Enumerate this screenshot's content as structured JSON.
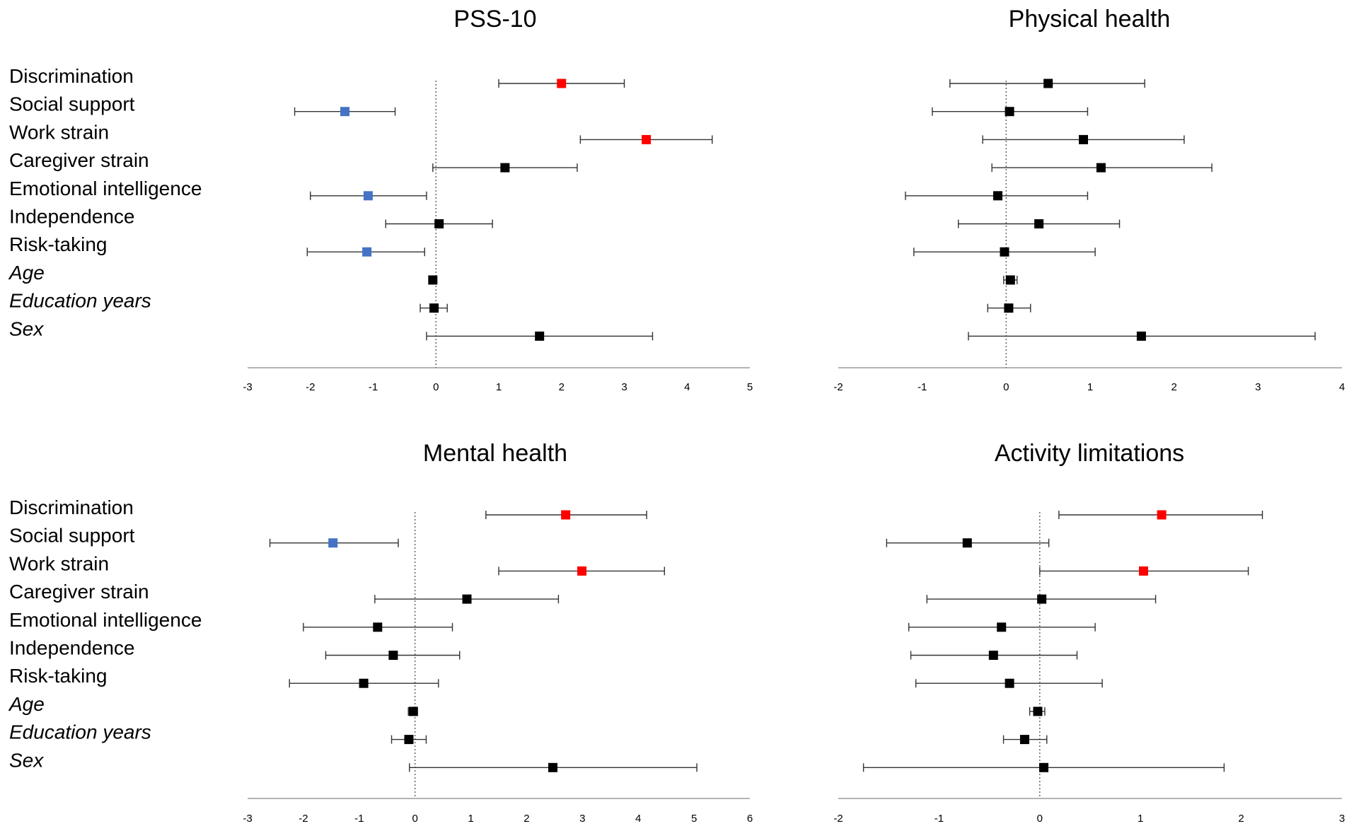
{
  "chart_data": [
    {
      "type": "forest",
      "title": "PSS-10",
      "xlim": [
        -3,
        5
      ],
      "ticks": [
        "-3",
        "-2",
        "-1",
        "0",
        "1",
        "2",
        "3",
        "4",
        "5"
      ],
      "categories": [
        "Discrimination",
        "Social support",
        "Work strain",
        "Caregiver strain",
        "Emotional intelligence",
        "Independence",
        "Risk-taking",
        "Age",
        "Education years",
        "Sex"
      ],
      "points": [
        {
          "estimate": 2.0,
          "lower": 1.0,
          "upper": 3.0,
          "color": "#ff0000"
        },
        {
          "estimate": -1.45,
          "lower": -2.25,
          "upper": -0.65,
          "color": "#4472c4"
        },
        {
          "estimate": 3.35,
          "lower": 2.3,
          "upper": 4.4,
          "color": "#ff0000"
        },
        {
          "estimate": 1.1,
          "lower": -0.05,
          "upper": 2.25,
          "color": "#000000"
        },
        {
          "estimate": -1.08,
          "lower": -2.0,
          "upper": -0.15,
          "color": "#4472c4"
        },
        {
          "estimate": 0.05,
          "lower": -0.8,
          "upper": 0.9,
          "color": "#000000"
        },
        {
          "estimate": -1.1,
          "lower": -2.05,
          "upper": -0.18,
          "color": "#4472c4"
        },
        {
          "estimate": -0.05,
          "lower": -0.08,
          "upper": -0.02,
          "color": "#000000"
        },
        {
          "estimate": -0.03,
          "lower": -0.25,
          "upper": 0.18,
          "color": "#000000"
        },
        {
          "estimate": 1.65,
          "lower": -0.15,
          "upper": 3.45,
          "color": "#000000"
        }
      ]
    },
    {
      "type": "forest",
      "title": "Physical health",
      "xlim": [
        -2,
        4
      ],
      "ticks": [
        "-2",
        "-1",
        "0",
        "1",
        "2",
        "3",
        "4"
      ],
      "categories": [
        "Discrimination",
        "Social support",
        "Work strain",
        "Caregiver strain",
        "Emotional intelligence",
        "Independence",
        "Risk-taking",
        "Age",
        "Education years",
        "Sex"
      ],
      "points": [
        {
          "estimate": 0.5,
          "lower": -0.67,
          "upper": 1.65,
          "color": "#000000"
        },
        {
          "estimate": 0.04,
          "lower": -0.88,
          "upper": 0.97,
          "color": "#000000"
        },
        {
          "estimate": 0.92,
          "lower": -0.28,
          "upper": 2.12,
          "color": "#000000"
        },
        {
          "estimate": 1.13,
          "lower": -0.17,
          "upper": 2.45,
          "color": "#000000"
        },
        {
          "estimate": -0.1,
          "lower": -1.2,
          "upper": 0.97,
          "color": "#000000"
        },
        {
          "estimate": 0.39,
          "lower": -0.57,
          "upper": 1.35,
          "color": "#000000"
        },
        {
          "estimate": -0.02,
          "lower": -1.1,
          "upper": 1.06,
          "color": "#000000"
        },
        {
          "estimate": 0.05,
          "lower": -0.03,
          "upper": 0.13,
          "color": "#000000"
        },
        {
          "estimate": 0.03,
          "lower": -0.22,
          "upper": 0.29,
          "color": "#000000"
        },
        {
          "estimate": 1.61,
          "lower": -0.45,
          "upper": 3.68,
          "color": "#000000"
        }
      ]
    },
    {
      "type": "forest",
      "title": "Mental health",
      "xlim": [
        -3,
        6
      ],
      "ticks": [
        "-3",
        "-2",
        "-1",
        "0",
        "1",
        "2",
        "3",
        "4",
        "5",
        "6"
      ],
      "categories": [
        "Discrimination",
        "Social support",
        "Work strain",
        "Caregiver strain",
        "Emotional intelligence",
        "Independence",
        "Risk-taking",
        "Age",
        "Education years",
        "Sex"
      ],
      "points": [
        {
          "estimate": 2.7,
          "lower": 1.27,
          "upper": 4.15,
          "color": "#ff0000"
        },
        {
          "estimate": -1.47,
          "lower": -2.6,
          "upper": -0.3,
          "color": "#4472c4"
        },
        {
          "estimate": 2.99,
          "lower": 1.5,
          "upper": 4.47,
          "color": "#ff0000"
        },
        {
          "estimate": 0.93,
          "lower": -0.72,
          "upper": 2.57,
          "color": "#000000"
        },
        {
          "estimate": -0.67,
          "lower": -2.0,
          "upper": 0.67,
          "color": "#000000"
        },
        {
          "estimate": -0.39,
          "lower": -1.6,
          "upper": 0.8,
          "color": "#000000"
        },
        {
          "estimate": -0.92,
          "lower": -2.25,
          "upper": 0.42,
          "color": "#000000"
        },
        {
          "estimate": -0.03,
          "lower": -0.12,
          "upper": 0.04,
          "color": "#000000"
        },
        {
          "estimate": -0.11,
          "lower": -0.42,
          "upper": 0.2,
          "color": "#000000"
        },
        {
          "estimate": 2.47,
          "lower": -0.1,
          "upper": 5.05,
          "color": "#000000"
        }
      ]
    },
    {
      "type": "forest",
      "title": "Activity limitations",
      "xlim": [
        -2,
        3
      ],
      "ticks": [
        "-2",
        "-1",
        "0",
        "1",
        "2",
        "3"
      ],
      "categories": [
        "Discrimination",
        "Social support",
        "Work strain",
        "Caregiver strain",
        "Emotional intelligence",
        "Independence",
        "Risk-taking",
        "Age",
        "Education years",
        "Sex"
      ],
      "points": [
        {
          "estimate": 1.21,
          "lower": 0.19,
          "upper": 2.21,
          "color": "#ff0000"
        },
        {
          "estimate": -0.72,
          "lower": -1.52,
          "upper": 0.09,
          "color": "#000000"
        },
        {
          "estimate": 1.03,
          "lower": 0.0,
          "upper": 2.07,
          "color": "#ff0000"
        },
        {
          "estimate": 0.02,
          "lower": -1.12,
          "upper": 1.15,
          "color": "#000000"
        },
        {
          "estimate": -0.38,
          "lower": -1.3,
          "upper": 0.55,
          "color": "#000000"
        },
        {
          "estimate": -0.46,
          "lower": -1.28,
          "upper": 0.37,
          "color": "#000000"
        },
        {
          "estimate": -0.3,
          "lower": -1.23,
          "upper": 0.62,
          "color": "#000000"
        },
        {
          "estimate": -0.02,
          "lower": -0.1,
          "upper": 0.05,
          "color": "#000000"
        },
        {
          "estimate": -0.15,
          "lower": -0.36,
          "upper": 0.07,
          "color": "#000000"
        },
        {
          "estimate": 0.04,
          "lower": -1.75,
          "upper": 1.83,
          "color": "#000000"
        }
      ]
    }
  ]
}
